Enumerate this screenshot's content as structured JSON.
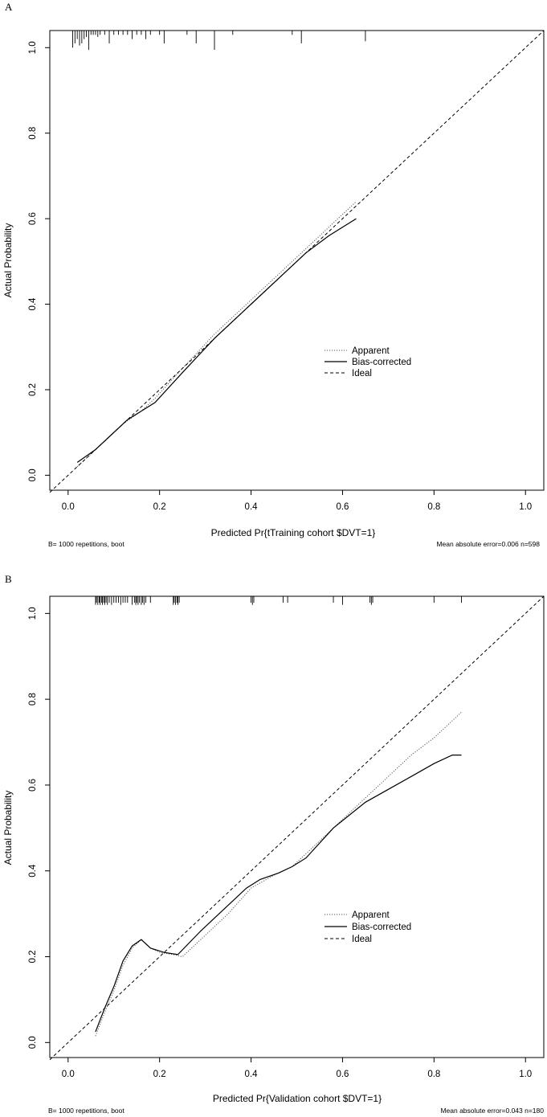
{
  "chart_data": [
    {
      "type": "line",
      "panel_label": "A",
      "xlabel": "Predicted Pr{tTraining cohort $DVT=1}",
      "ylabel": "Actual Probability",
      "xlim": [
        -0.04,
        1.04
      ],
      "ylim": [
        -0.035,
        1.04
      ],
      "x_ticks": [
        0.0,
        0.2,
        0.4,
        0.6,
        0.8,
        1.0
      ],
      "x_tick_labels": [
        "0.0",
        "0.2",
        "0.4",
        "0.6",
        "0.8",
        "1.0"
      ],
      "y_ticks": [
        0.0,
        0.2,
        0.4,
        0.6,
        0.8,
        1.0
      ],
      "y_tick_labels": [
        "0.0",
        "0.2",
        "0.4",
        "0.6",
        "0.8",
        "1.0"
      ],
      "footer_left": "B= 1000 repetitions, boot",
      "footer_right": "Mean absolute error=0.006 n=598",
      "legend": {
        "position": "center-right",
        "entries": [
          "Apparent",
          "Bias-corrected",
          "Ideal"
        ]
      },
      "series": [
        {
          "name": "Apparent",
          "style": "dotted",
          "x": [
            0.02,
            0.05,
            0.08,
            0.12,
            0.16,
            0.19,
            0.25,
            0.32,
            0.4,
            0.48,
            0.55,
            0.6,
            0.63
          ],
          "y": [
            0.02,
            0.05,
            0.08,
            0.12,
            0.15,
            0.18,
            0.25,
            0.33,
            0.41,
            0.49,
            0.56,
            0.61,
            0.64
          ]
        },
        {
          "name": "Bias-corrected",
          "style": "solid",
          "x": [
            0.02,
            0.06,
            0.09,
            0.13,
            0.16,
            0.19,
            0.25,
            0.32,
            0.4,
            0.47,
            0.52,
            0.57,
            0.6,
            0.63
          ],
          "y": [
            0.03,
            0.06,
            0.09,
            0.13,
            0.15,
            0.17,
            0.24,
            0.32,
            0.4,
            0.47,
            0.52,
            0.56,
            0.58,
            0.6
          ]
        },
        {
          "name": "Ideal",
          "style": "dashed",
          "x": [
            -0.04,
            1.04
          ],
          "y": [
            -0.04,
            1.04
          ]
        }
      ],
      "rug": {
        "x": [
          0.01,
          0.015,
          0.02,
          0.025,
          0.03,
          0.035,
          0.04,
          0.045,
          0.05,
          0.055,
          0.06,
          0.065,
          0.07,
          0.08,
          0.09,
          0.1,
          0.11,
          0.12,
          0.13,
          0.14,
          0.15,
          0.16,
          0.17,
          0.18,
          0.2,
          0.21,
          0.26,
          0.28,
          0.32,
          0.36,
          0.49,
          0.51,
          0.65
        ],
        "len": [
          0.04,
          0.03,
          0.02,
          0.035,
          0.03,
          0.02,
          0.015,
          0.045,
          0.01,
          0.01,
          0.01,
          0.015,
          0.01,
          0.01,
          0.03,
          0.01,
          0.01,
          0.01,
          0.01,
          0.02,
          0.01,
          0.01,
          0.02,
          0.01,
          0.01,
          0.03,
          0.01,
          0.03,
          0.045,
          0.01,
          0.01,
          0.03,
          0.025
        ]
      }
    },
    {
      "type": "line",
      "panel_label": "B",
      "xlabel": "Predicted Pr{Validation cohort $DVT=1}",
      "ylabel": "Actual Probability",
      "xlim": [
        -0.04,
        1.04
      ],
      "ylim": [
        -0.035,
        1.04
      ],
      "x_ticks": [
        0.0,
        0.2,
        0.4,
        0.6,
        0.8,
        1.0
      ],
      "x_tick_labels": [
        "0.0",
        "0.2",
        "0.4",
        "0.6",
        "0.8",
        "1.0"
      ],
      "y_ticks": [
        0.0,
        0.2,
        0.4,
        0.6,
        0.8,
        1.0
      ],
      "y_tick_labels": [
        "0.0",
        "0.2",
        "0.4",
        "0.6",
        "0.8",
        "1.0"
      ],
      "footer_left": "B= 1000 repetitions, boot",
      "footer_right": "Mean absolute error=0.043 n=180",
      "legend": {
        "position": "center-right",
        "entries": [
          "Apparent",
          "Bias-corrected",
          "Ideal"
        ]
      },
      "series": [
        {
          "name": "Apparent",
          "style": "dotted",
          "x": [
            0.06,
            0.08,
            0.1,
            0.12,
            0.14,
            0.16,
            0.18,
            0.2,
            0.23,
            0.25,
            0.3,
            0.35,
            0.4,
            0.45,
            0.49,
            0.55,
            0.6,
            0.65,
            0.7,
            0.75,
            0.8,
            0.86
          ],
          "y": [
            0.015,
            0.07,
            0.12,
            0.18,
            0.22,
            0.24,
            0.22,
            0.21,
            0.205,
            0.2,
            0.25,
            0.3,
            0.36,
            0.39,
            0.41,
            0.47,
            0.52,
            0.57,
            0.62,
            0.67,
            0.71,
            0.77
          ]
        },
        {
          "name": "Bias-corrected",
          "style": "solid",
          "x": [
            0.06,
            0.08,
            0.1,
            0.12,
            0.14,
            0.16,
            0.18,
            0.21,
            0.24,
            0.29,
            0.35,
            0.39,
            0.42,
            0.46,
            0.49,
            0.52,
            0.58,
            0.65,
            0.7,
            0.75,
            0.8,
            0.84,
            0.86
          ],
          "y": [
            0.025,
            0.08,
            0.13,
            0.19,
            0.225,
            0.24,
            0.22,
            0.21,
            0.205,
            0.26,
            0.32,
            0.36,
            0.38,
            0.395,
            0.41,
            0.43,
            0.5,
            0.56,
            0.59,
            0.62,
            0.65,
            0.67,
            0.67
          ]
        },
        {
          "name": "Ideal",
          "style": "dashed",
          "x": [
            -0.04,
            1.04
          ],
          "y": [
            -0.04,
            1.04
          ]
        }
      ],
      "rug": {
        "x": [
          0.06,
          0.062,
          0.065,
          0.068,
          0.07,
          0.073,
          0.075,
          0.078,
          0.08,
          0.083,
          0.086,
          0.09,
          0.095,
          0.1,
          0.105,
          0.11,
          0.115,
          0.12,
          0.125,
          0.13,
          0.14,
          0.145,
          0.148,
          0.15,
          0.153,
          0.156,
          0.16,
          0.163,
          0.166,
          0.17,
          0.18,
          0.23,
          0.232,
          0.235,
          0.238,
          0.24,
          0.243,
          0.4,
          0.403,
          0.406,
          0.47,
          0.48,
          0.58,
          0.6,
          0.66,
          0.663,
          0.666,
          0.8,
          0.86
        ],
        "len": [
          0.02,
          0.015,
          0.02,
          0.015,
          0.02,
          0.015,
          0.02,
          0.015,
          0.02,
          0.015,
          0.02,
          0.015,
          0.02,
          0.015,
          0.015,
          0.015,
          0.02,
          0.015,
          0.015,
          0.015,
          0.02,
          0.015,
          0.02,
          0.015,
          0.02,
          0.015,
          0.02,
          0.015,
          0.02,
          0.015,
          0.015,
          0.02,
          0.015,
          0.02,
          0.015,
          0.02,
          0.015,
          0.015,
          0.02,
          0.015,
          0.015,
          0.015,
          0.015,
          0.02,
          0.015,
          0.02,
          0.015,
          0.015,
          0.015
        ]
      }
    }
  ]
}
